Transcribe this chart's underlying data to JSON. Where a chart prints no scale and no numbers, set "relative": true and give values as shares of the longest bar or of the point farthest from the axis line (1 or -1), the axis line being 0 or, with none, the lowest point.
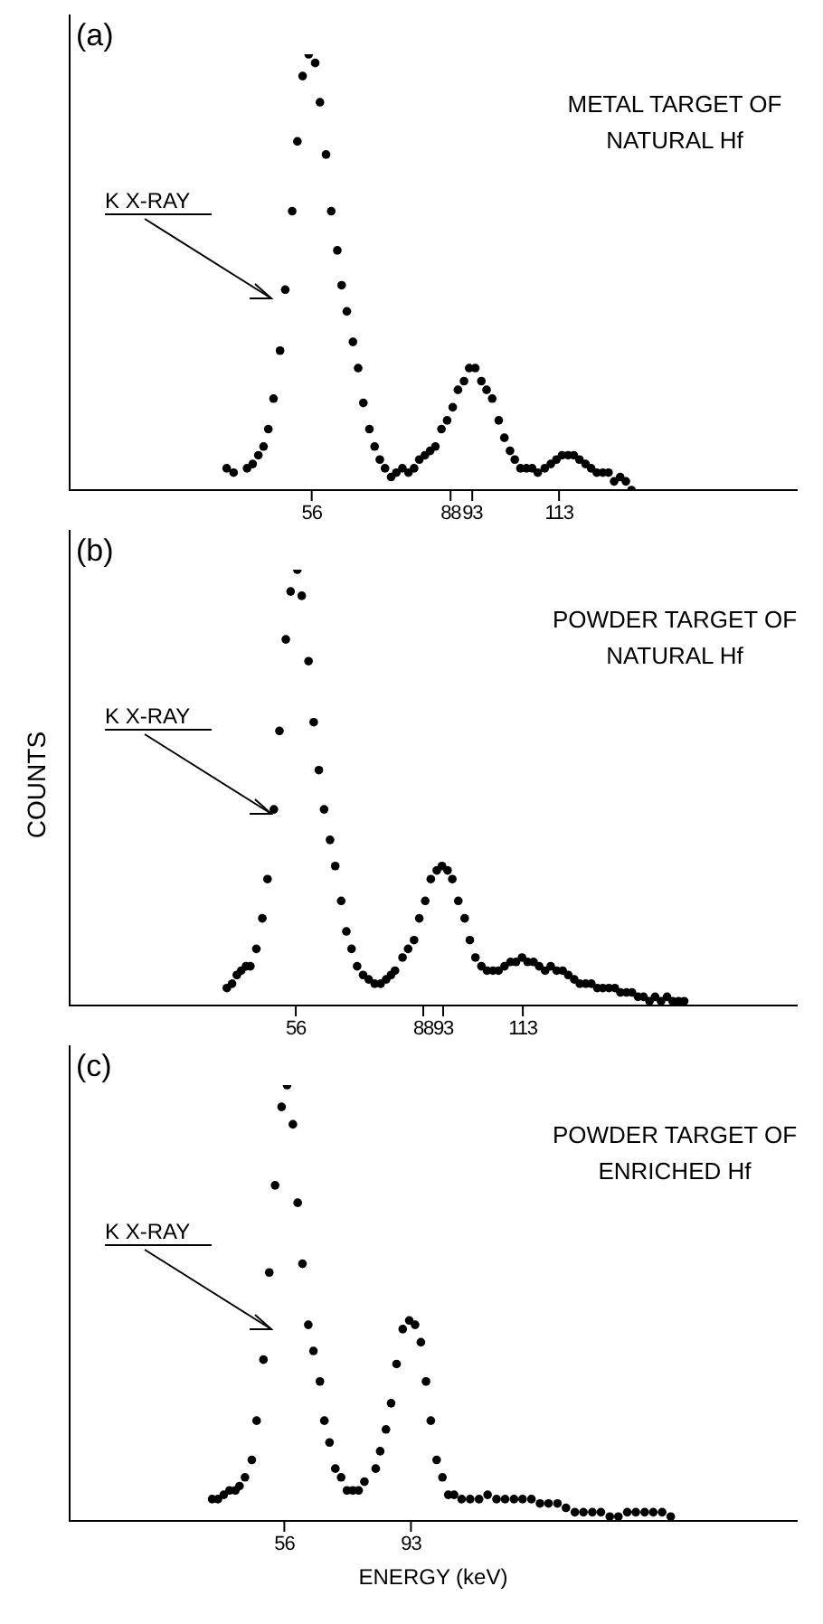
{
  "chart_data": [
    {
      "type": "scatter",
      "title": "(a)",
      "relative": true,
      "color": "#000000",
      "marker": "circle",
      "xlim": [
        0,
        168
      ],
      "xticks": [
        56,
        88,
        93,
        113
      ],
      "annotations": [
        "METAL TARGET OF NATURAL Hf",
        "K X-RAY"
      ],
      "x": [
        36.4,
        38.0,
        41.1,
        42.4,
        43.7,
        44.9,
        46.0,
        47.2,
        48.7,
        49.9,
        51.5,
        52.7,
        53.9,
        55.3,
        56.8,
        57.9,
        59.3,
        60.5,
        61.9,
        62.9,
        64.1,
        65.5,
        66.7,
        67.9,
        69.3,
        70.5,
        71.7,
        72.9,
        74.3,
        75.5,
        76.9,
        78.3,
        79.6,
        80.8,
        82.1,
        83.3,
        84.5,
        85.9,
        87.2,
        88.5,
        89.7,
        91.1,
        92.3,
        93.7,
        95.1,
        96.3,
        97.6,
        99.1,
        100.4,
        101.7,
        102.8,
        104.1,
        105.5,
        106.8,
        108.1,
        109.7,
        111.1,
        112.4,
        113.7,
        115.1,
        116.4,
        117.7,
        119.1,
        120.4,
        121.7,
        123.1,
        124.4,
        125.7,
        127.1,
        128.4,
        129.7
      ],
      "values": [
        0.05,
        0.04,
        0.05,
        0.06,
        0.08,
        0.1,
        0.14,
        0.21,
        0.32,
        0.46,
        0.64,
        0.8,
        0.95,
        1.0,
        0.98,
        0.89,
        0.77,
        0.64,
        0.55,
        0.47,
        0.41,
        0.34,
        0.28,
        0.2,
        0.14,
        0.1,
        0.07,
        0.05,
        0.03,
        0.04,
        0.05,
        0.04,
        0.05,
        0.07,
        0.08,
        0.09,
        0.1,
        0.14,
        0.16,
        0.19,
        0.23,
        0.25,
        0.28,
        0.28,
        0.25,
        0.23,
        0.21,
        0.16,
        0.12,
        0.09,
        0.07,
        0.05,
        0.05,
        0.05,
        0.04,
        0.05,
        0.06,
        0.07,
        0.08,
        0.08,
        0.08,
        0.07,
        0.06,
        0.05,
        0.04,
        0.04,
        0.04,
        0.02,
        0.03,
        0.02,
        0.0
      ]
    },
    {
      "type": "scatter",
      "title": "(b)",
      "ylabel": "COUNTS",
      "relative": true,
      "color": "#000000",
      "marker": "circle",
      "xlim": [
        -1,
        182
      ],
      "xticks": [
        56,
        88,
        93,
        113
      ],
      "annotations": [
        "POWDER TARGET OF NATURAL Hf",
        "K X-RAY"
      ],
      "x": [
        38.7,
        40.0,
        41.2,
        42.3,
        43.5,
        44.6,
        46.1,
        47.6,
        48.9,
        50.5,
        51.9,
        53.5,
        54.7,
        56.4,
        57.5,
        59.2,
        60.5,
        61.8,
        63.1,
        64.6,
        65.9,
        67.4,
        68.7,
        70.0,
        71.4,
        72.9,
        74.3,
        75.8,
        77.3,
        78.7,
        79.9,
        80.9,
        82.8,
        84.2,
        85.7,
        87.0,
        88.5,
        89.9,
        91.4,
        92.7,
        94.1,
        95.3,
        96.8,
        98.4,
        99.7,
        101.1,
        102.6,
        104.0,
        105.5,
        106.9,
        108.4,
        109.9,
        111.3,
        112.8,
        114.2,
        115.7,
        117.1,
        118.6,
        120.0,
        121.5,
        123.0,
        124.4,
        125.9,
        127.3,
        128.8,
        130.2,
        131.7,
        133.1,
        134.6,
        136.1,
        137.5,
        139.0,
        140.4,
        141.9,
        143.3,
        144.8,
        146.2,
        147.7,
        149.2,
        150.6,
        152.1,
        153.5
      ],
      "values": [
        0.04,
        0.05,
        0.07,
        0.08,
        0.09,
        0.09,
        0.13,
        0.2,
        0.29,
        0.45,
        0.63,
        0.84,
        0.95,
        1.0,
        0.94,
        0.79,
        0.65,
        0.54,
        0.45,
        0.38,
        0.32,
        0.24,
        0.17,
        0.13,
        0.09,
        0.07,
        0.06,
        0.05,
        0.05,
        0.06,
        0.07,
        0.08,
        0.11,
        0.13,
        0.15,
        0.2,
        0.24,
        0.29,
        0.31,
        0.32,
        0.31,
        0.29,
        0.24,
        0.2,
        0.15,
        0.11,
        0.09,
        0.08,
        0.08,
        0.08,
        0.09,
        0.1,
        0.1,
        0.11,
        0.1,
        0.1,
        0.09,
        0.08,
        0.09,
        0.08,
        0.08,
        0.07,
        0.06,
        0.05,
        0.05,
        0.05,
        0.04,
        0.04,
        0.04,
        0.04,
        0.03,
        0.03,
        0.03,
        0.02,
        0.02,
        0.01,
        0.02,
        0.01,
        0.02,
        0.01,
        0.01,
        0.01
      ]
    },
    {
      "type": "scatter",
      "title": "(c)",
      "xlabel": "ENERGY (keV)",
      "relative": true,
      "color": "#000000",
      "marker": "circle",
      "xlim": [
        -7,
        206
      ],
      "xticks": [
        56,
        93
      ],
      "annotations": [
        "POWDER TARGET OF ENRICHED Hf",
        "K X-RAY"
      ],
      "x": [
        34.9,
        36.6,
        38.3,
        40.0,
        41.7,
        42.9,
        44.5,
        46.5,
        47.9,
        49.9,
        51.6,
        53.3,
        55.2,
        56.8,
        58.5,
        59.9,
        61.3,
        63.0,
        64.5,
        66.4,
        67.7,
        69.2,
        70.9,
        72.6,
        74.3,
        76.0,
        77.7,
        79.4,
        82.7,
        84.0,
        85.7,
        87.2,
        88.8,
        90.6,
        92.5,
        94.2,
        95.9,
        97.4,
        98.8,
        100.5,
        102.2,
        103.9,
        105.6,
        107.8,
        110.3,
        112.9,
        115.4,
        118.0,
        120.5,
        123.1,
        125.6,
        128.2,
        130.7,
        133.2,
        135.8,
        138.3,
        140.9,
        143.4,
        146.0,
        148.5,
        151.1,
        153.6,
        156.2,
        158.7,
        161.3,
        163.8,
        166.4,
        168.9
      ],
      "values": [
        0.05,
        0.05,
        0.06,
        0.07,
        0.07,
        0.08,
        0.1,
        0.14,
        0.23,
        0.37,
        0.57,
        0.77,
        0.95,
        1.0,
        0.91,
        0.73,
        0.59,
        0.45,
        0.39,
        0.32,
        0.23,
        0.18,
        0.12,
        0.1,
        0.07,
        0.07,
        0.07,
        0.09,
        0.12,
        0.16,
        0.21,
        0.27,
        0.36,
        0.44,
        0.46,
        0.45,
        0.41,
        0.32,
        0.23,
        0.14,
        0.1,
        0.06,
        0.06,
        0.05,
        0.05,
        0.05,
        0.06,
        0.05,
        0.05,
        0.05,
        0.05,
        0.05,
        0.04,
        0.04,
        0.04,
        0.03,
        0.02,
        0.02,
        0.02,
        0.02,
        0.01,
        0.01,
        0.02,
        0.02,
        0.02,
        0.02,
        0.02,
        0.01
      ]
    }
  ]
}
